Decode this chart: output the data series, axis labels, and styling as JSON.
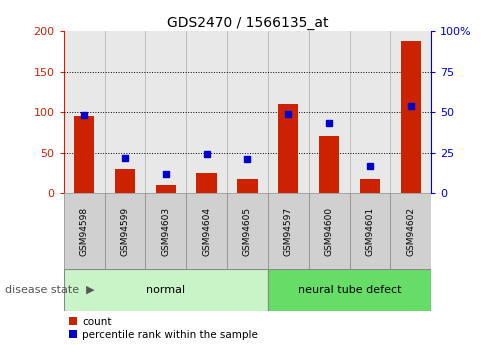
{
  "title": "GDS2470 / 1566135_at",
  "samples": [
    "GSM94598",
    "GSM94599",
    "GSM94603",
    "GSM94604",
    "GSM94605",
    "GSM94597",
    "GSM94600",
    "GSM94601",
    "GSM94602"
  ],
  "count": [
    95,
    30,
    10,
    25,
    18,
    110,
    70,
    17,
    188
  ],
  "percentile": [
    48,
    22,
    12,
    24,
    21,
    49,
    43,
    17,
    54
  ],
  "groups": [
    {
      "label": "normal",
      "start": 0,
      "end": 5,
      "color": "#c8f4c8"
    },
    {
      "label": "neural tube defect",
      "start": 5,
      "end": 9,
      "color": "#66dd66"
    }
  ],
  "bar_color": "#cc2200",
  "dot_color": "#0000cc",
  "left_ylim": [
    0,
    200
  ],
  "right_ylim": [
    0,
    100
  ],
  "left_yticks": [
    0,
    50,
    100,
    150,
    200
  ],
  "right_yticks": [
    0,
    25,
    50,
    75,
    100
  ],
  "right_yticklabels": [
    "0",
    "25",
    "50",
    "75",
    "100%"
  ],
  "grid_values": [
    50,
    100,
    150
  ],
  "legend_count_label": "count",
  "legend_pct_label": "percentile rank within the sample",
  "disease_state_label": "disease state",
  "title_fontsize": 10,
  "bar_width": 0.5,
  "dot_size": 40
}
